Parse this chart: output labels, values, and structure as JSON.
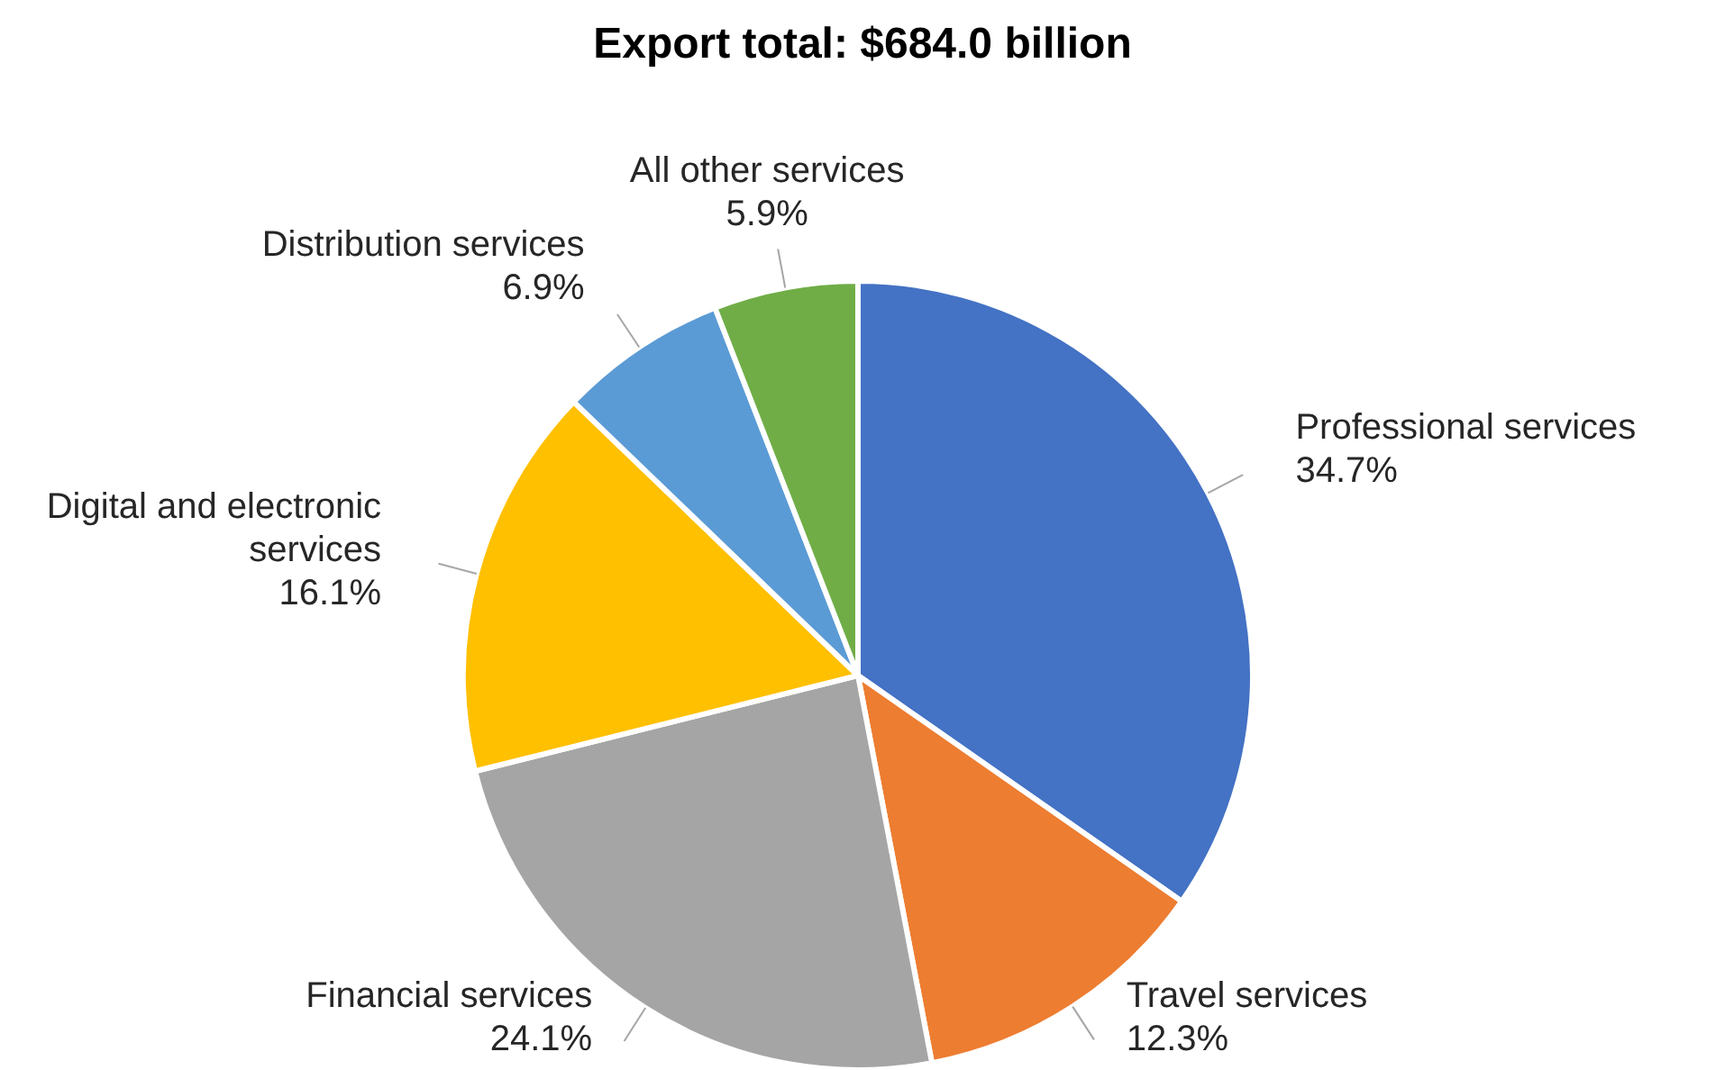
{
  "chart_data": {
    "type": "pie",
    "title": "Export total: $684.0 billion",
    "categories": [
      "Professional services",
      "Travel services",
      "Financial services",
      "Digital and electronic services",
      "Distribution services",
      "All other services"
    ],
    "values": [
      34.7,
      12.3,
      24.1,
      16.1,
      6.9,
      5.9
    ],
    "value_labels": [
      "34.7%",
      "12.3%",
      "24.1%",
      "16.1%",
      "6.9%",
      "5.9%"
    ],
    "colors": [
      "#4472c4",
      "#ed7d31",
      "#a5a5a5",
      "#ffc000",
      "#5b9bd5",
      "#70ad47"
    ],
    "legend": false
  }
}
